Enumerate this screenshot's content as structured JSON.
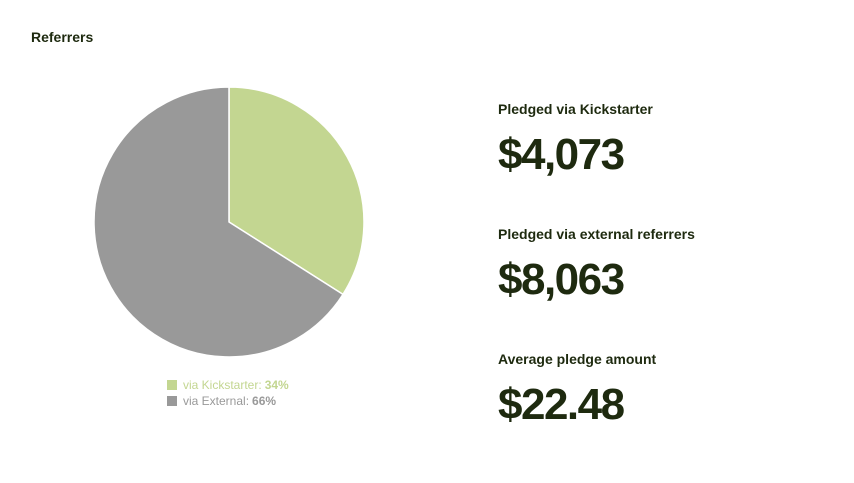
{
  "section_title": "Referrers",
  "chart_data": {
    "type": "pie",
    "title": "",
    "slices": [
      {
        "name": "via Kickstarter",
        "label": "via Kickstarter:",
        "percent_label": "34%",
        "value": 34,
        "color": "#c3d691"
      },
      {
        "name": "via External",
        "label": "via External:",
        "percent_label": "66%",
        "value": 66,
        "color": "#999999"
      }
    ],
    "start_angle_deg": 0,
    "direction": "clockwise",
    "legend": "bottom"
  },
  "stats": [
    {
      "label": "Pledged via Kickstarter",
      "value": "$4,073"
    },
    {
      "label": "Pledged via external referrers",
      "value": "$8,063"
    },
    {
      "label": "Average pledge amount",
      "value": "$22.48"
    }
  ]
}
